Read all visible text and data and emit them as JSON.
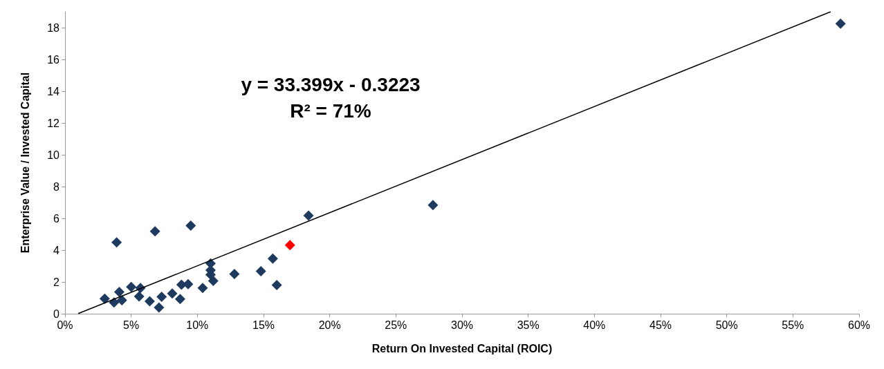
{
  "chart_data": {
    "type": "scatter",
    "xlabel": "Return On Invested Capital (ROIC)",
    "ylabel": "Enterprise Value / Invested Capital",
    "annotations": [
      "y = 33.399x - 0.3223",
      "R² = 71%"
    ],
    "grid": false,
    "xlim": [
      0,
      60
    ],
    "xticks": [
      {
        "value": 0,
        "label": "0%"
      },
      {
        "value": 5,
        "label": "5%"
      },
      {
        "value": 10,
        "label": "10%"
      },
      {
        "value": 15,
        "label": "15%"
      },
      {
        "value": 20,
        "label": "20%"
      },
      {
        "value": 25,
        "label": "25%"
      },
      {
        "value": 30,
        "label": "30%"
      },
      {
        "value": 35,
        "label": "35%"
      },
      {
        "value": 40,
        "label": "40%"
      },
      {
        "value": 45,
        "label": "45%"
      },
      {
        "value": 50,
        "label": "50%"
      },
      {
        "value": 55,
        "label": "55%"
      },
      {
        "value": 60,
        "label": "60%"
      }
    ],
    "ylim": [
      0,
      19
    ],
    "yticks": [
      0,
      2,
      4,
      6,
      8,
      10,
      12,
      14,
      16,
      18
    ],
    "series": [
      {
        "marker": "diamond",
        "color": "#1f3a5f",
        "x": [
          3.0,
          3.7,
          4.1,
          4.3,
          3.9,
          5.0,
          5.7,
          5.6,
          6.4,
          6.8,
          7.1,
          7.3,
          8.1,
          8.7,
          8.8,
          9.3,
          9.5,
          10.4,
          11.0,
          11.0,
          11.0,
          11.2,
          12.8,
          14.8,
          15.7,
          16.0,
          18.4,
          27.8,
          58.6,
          17.0
        ],
        "values": [
          0.95,
          0.71,
          1.37,
          0.85,
          4.49,
          1.69,
          1.62,
          1.09,
          0.78,
          5.19,
          0.39,
          1.06,
          1.27,
          0.92,
          1.83,
          1.86,
          5.54,
          1.62,
          3.16,
          2.74,
          2.46,
          2.07,
          2.5,
          2.67,
          3.47,
          1.8,
          6.17,
          6.84,
          18.25,
          4.31
        ],
        "colors": [
          "#1f3a5f",
          "#1f3a5f",
          "#1f3a5f",
          "#1f3a5f",
          "#1f3a5f",
          "#1f3a5f",
          "#1f3a5f",
          "#1f3a5f",
          "#1f3a5f",
          "#1f3a5f",
          "#1f3a5f",
          "#1f3a5f",
          "#1f3a5f",
          "#1f3a5f",
          "#1f3a5f",
          "#1f3a5f",
          "#1f3a5f",
          "#1f3a5f",
          "#1f3a5f",
          "#1f3a5f",
          "#1f3a5f",
          "#1f3a5f",
          "#1f3a5f",
          "#1f3a5f",
          "#1f3a5f",
          "#1f3a5f",
          "#1f3a5f",
          "#1f3a5f",
          "#1f3a5f",
          "#ff0000"
        ]
      },
      {
        "type": "line",
        "marker": "none",
        "color": "#000000",
        "x": [
          1,
          57.85
        ],
        "values": [
          0.01,
          19.0
        ]
      }
    ]
  }
}
